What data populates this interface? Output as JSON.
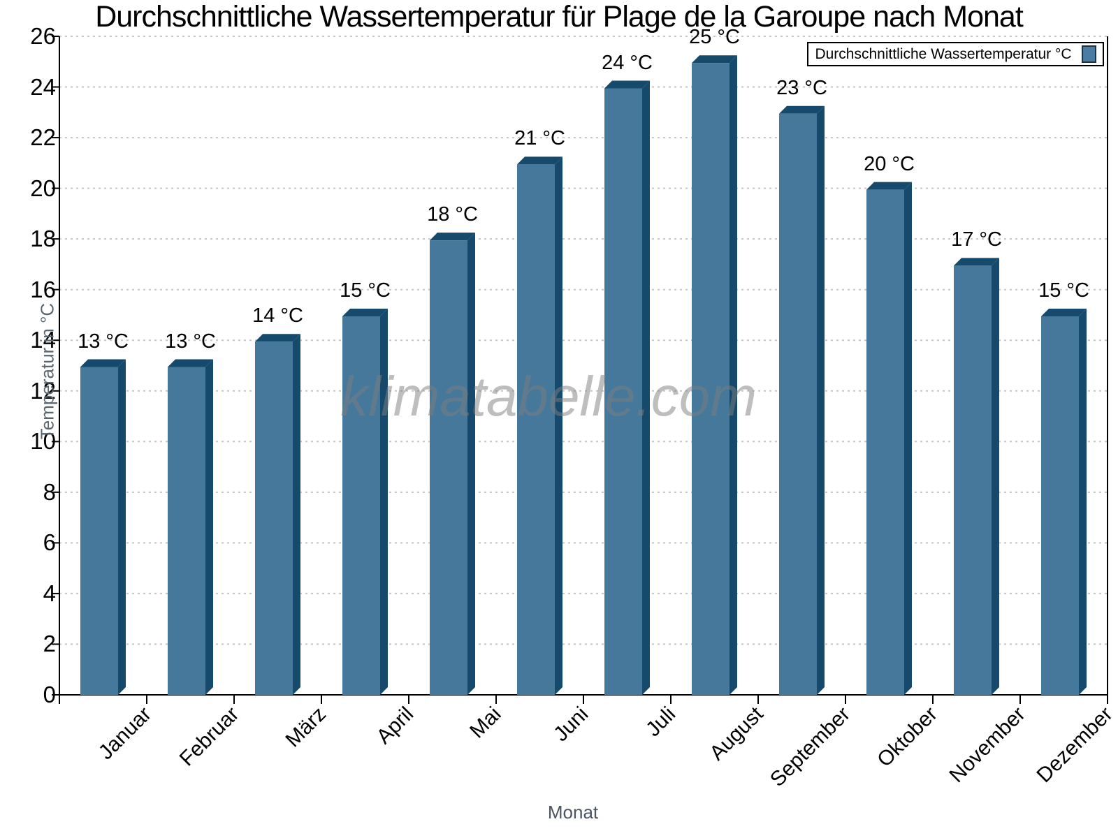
{
  "chart_data": {
    "type": "bar",
    "title": "Durchschnittliche Wassertemperatur für Plage de la Garoupe nach Monat",
    "xlabel": "Monat",
    "ylabel": "Temperatur in °C",
    "categories": [
      "Januar",
      "Februar",
      "März",
      "April",
      "Mai",
      "Juni",
      "Juli",
      "August",
      "September",
      "Oktober",
      "November",
      "Dezember"
    ],
    "values": [
      13,
      13,
      14,
      15,
      18,
      21,
      24,
      25,
      23,
      20,
      17,
      15
    ],
    "value_suffix": " °C",
    "ylim": [
      0,
      26
    ],
    "ytick_step": 2,
    "grid": "horizontal-dashed",
    "legend": {
      "label": "Durchschnittliche Wassertemperatur °C",
      "position": "top-right"
    },
    "colors": {
      "bar_front": "#45789B",
      "bar_side": "#164A6C",
      "grid": "#c6c6c6",
      "axis": "#000000",
      "axis_title": "#5a6570",
      "legend_swatch": "#4a7da3"
    }
  },
  "watermark": {
    "text": "klimatabelle.com"
  }
}
